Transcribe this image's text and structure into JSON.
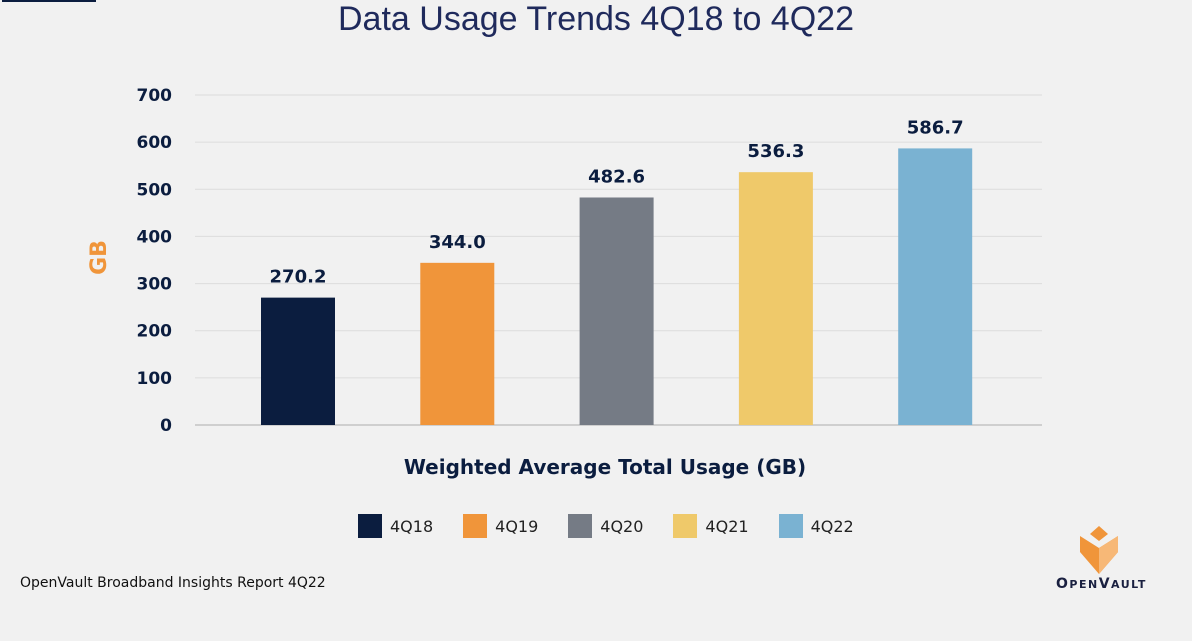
{
  "chart_data": {
    "type": "bar",
    "title": "Data Usage Trends 4Q18 to 4Q22",
    "xlabel": "Weighted Average Total Usage (GB)",
    "ylabel": "GB",
    "ylim": [
      0,
      700
    ],
    "yticks": [
      "0",
      "100",
      "200",
      "300",
      "400",
      "500",
      "600",
      "700"
    ],
    "grid": true,
    "legend_position": "bottom",
    "categories": [
      "4Q18",
      "4Q19",
      "4Q20",
      "4Q21",
      "4Q22"
    ],
    "values": [
      270.2,
      344.0,
      482.6,
      536.3,
      586.7
    ],
    "labels": [
      "270.2",
      "344.0",
      "482.6",
      "536.3",
      "586.7"
    ],
    "colors": [
      "#0b1d3f",
      "#f0953a",
      "#757b85",
      "#efc96a",
      "#7ab2d2"
    ]
  },
  "footer": {
    "source": "OpenVault Broadband Insights Report 4Q22",
    "logo_text": "OpenVault"
  }
}
